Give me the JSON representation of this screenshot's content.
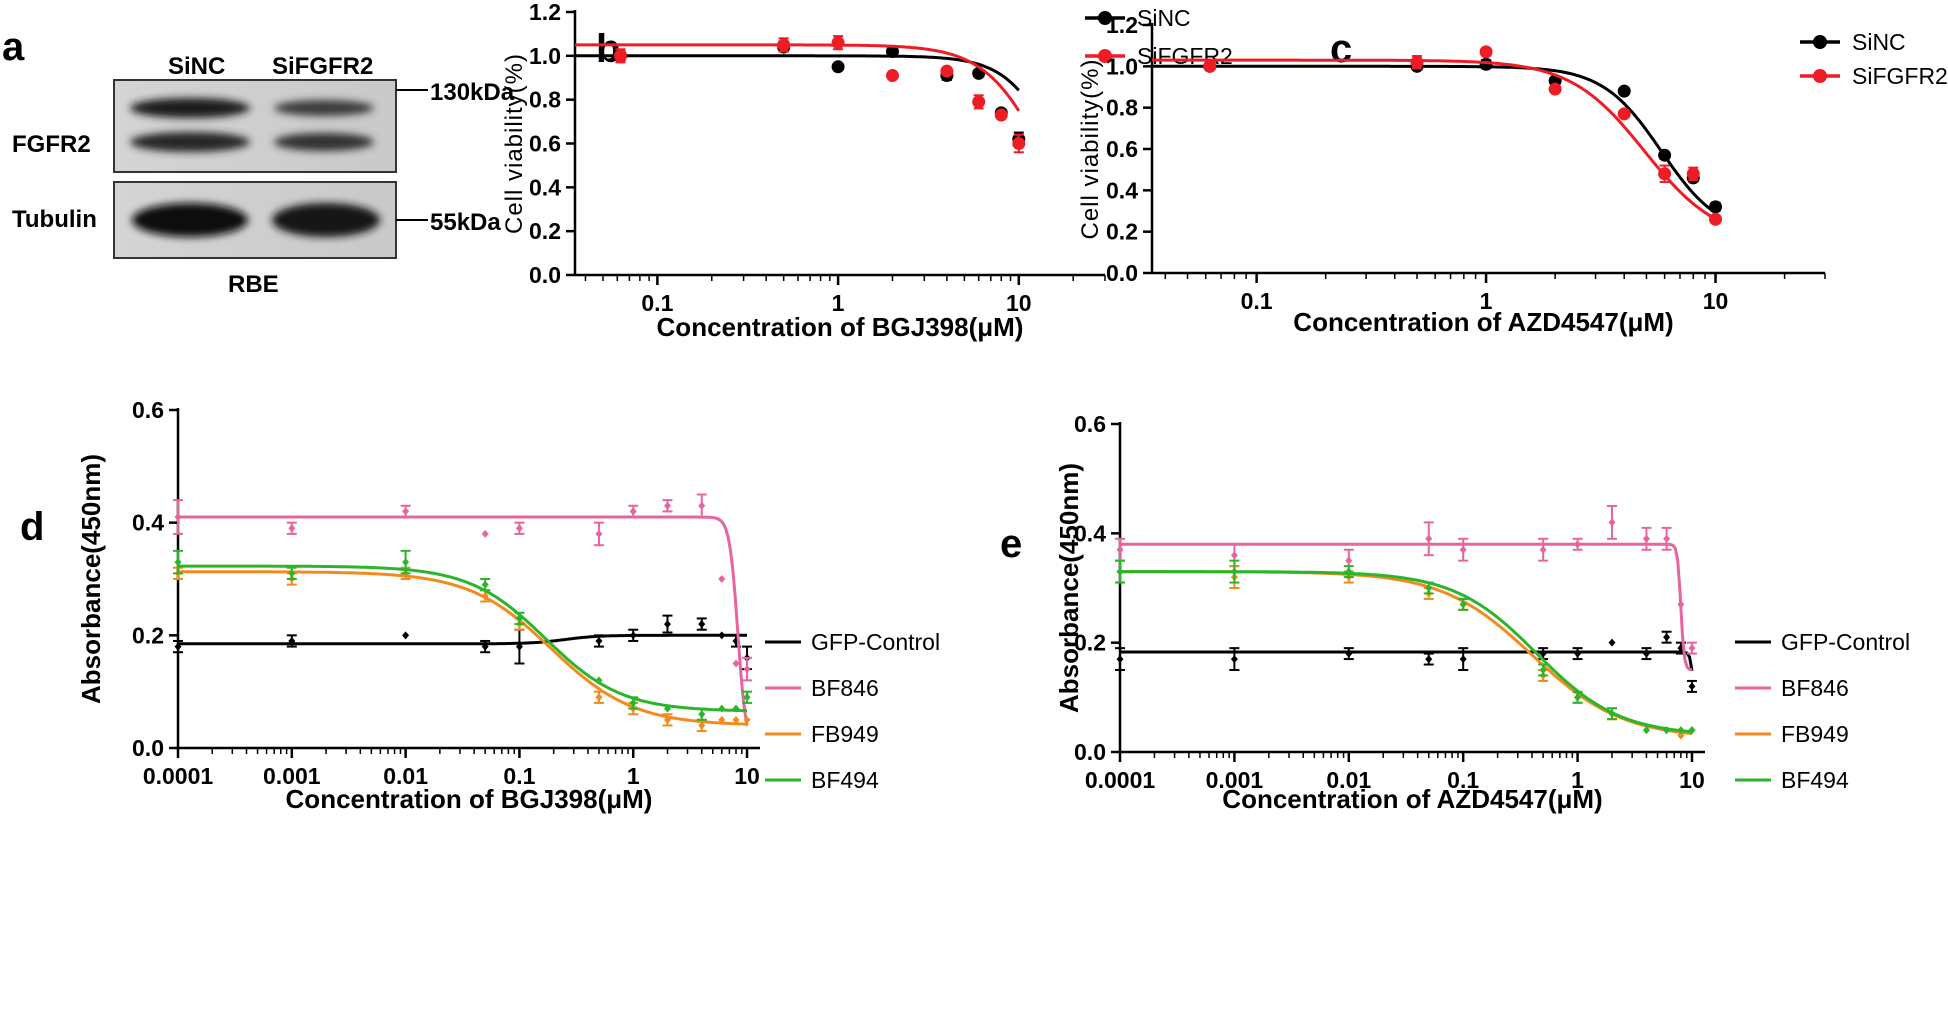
{
  "panel_letters": [
    "a",
    "b",
    "c",
    "d",
    "e"
  ],
  "blot": {
    "lanes": [
      "SiNC",
      "SiFGFR2"
    ],
    "rows": [
      "FGFR2",
      "Tubulin"
    ],
    "markers": [
      "130kDa",
      "55kDa"
    ],
    "cell_line": "RBE"
  },
  "chart_data": [
    {
      "panel": "b",
      "type": "scatter",
      "xscale": "log",
      "xlim": [
        0.035,
        30
      ],
      "ylim": [
        0,
        1.2
      ],
      "yticks": [
        "0.0",
        "0.2",
        "0.4",
        "0.6",
        "0.8",
        "1.0",
        "1.2"
      ],
      "xticks": [
        "0.1",
        "1",
        "10"
      ],
      "xlabel": "Concentration of BGJ398(μM)",
      "ylabel": "Cell viability(%)",
      "legend": "top-right",
      "series": [
        {
          "name": "SiNC",
          "color": "#000000",
          "marker": "circle",
          "x": [
            0.0625,
            0.5,
            1,
            2,
            4,
            6,
            8,
            10
          ],
          "y": [
            1.0,
            1.04,
            0.95,
            1.02,
            0.91,
            0.92,
            0.74,
            0.62
          ],
          "err": [
            0.02,
            0.02,
            0.0,
            0.0,
            0.02,
            0.0,
            0.0,
            0.03
          ],
          "fit": {
            "top": 1.0,
            "bottom": 0.0,
            "ec50": 17.5,
            "hill": 3.0
          }
        },
        {
          "name": "SiFGFR2",
          "color": "#ee1c24",
          "marker": "circle",
          "x": [
            0.0625,
            0.5,
            1,
            2,
            4,
            6,
            8,
            10
          ],
          "y": [
            1.0,
            1.05,
            1.06,
            0.91,
            0.93,
            0.79,
            0.73,
            0.6
          ],
          "err": [
            0.03,
            0.03,
            0.03,
            0.0,
            0.0,
            0.03,
            0.0,
            0.04
          ],
          "fit": {
            "top": 1.05,
            "bottom": 0.0,
            "ec50": 14.2,
            "hill": 2.6
          }
        }
      ]
    },
    {
      "panel": "c",
      "type": "scatter",
      "xscale": "log",
      "xlim": [
        0.035,
        30
      ],
      "ylim": [
        0,
        1.2
      ],
      "yticks": [
        "0.0",
        "0.2",
        "0.4",
        "0.6",
        "0.8",
        "1.0",
        "1.2"
      ],
      "xticks": [
        "0.1",
        "1",
        "10"
      ],
      "xlabel": "Concentration of AZD4547(μM)",
      "ylabel": "Cell viability(%)",
      "legend": "top-right",
      "series": [
        {
          "name": "SiNC",
          "color": "#000000",
          "marker": "circle",
          "x": [
            0.0625,
            0.5,
            1,
            2,
            4,
            6,
            8,
            10
          ],
          "y": [
            1.0,
            1.0,
            1.01,
            0.93,
            0.88,
            0.57,
            0.46,
            0.32
          ],
          "err": [
            0.0,
            0.0,
            0.02,
            0.0,
            0.0,
            0.0,
            0.0,
            0.02
          ],
          "fit": {
            "top": 1.0,
            "bottom": 0.18,
            "ec50": 5.8,
            "hill": 3.4
          }
        },
        {
          "name": "SiFGFR2",
          "color": "#ee1c24",
          "marker": "circle",
          "x": [
            0.0625,
            0.5,
            1,
            2,
            4,
            6,
            8,
            10
          ],
          "y": [
            1.0,
            1.02,
            1.07,
            0.89,
            0.77,
            0.48,
            0.48,
            0.26
          ],
          "err": [
            0.0,
            0.03,
            0.0,
            0.0,
            0.0,
            0.04,
            0.03,
            0.0
          ],
          "fit": {
            "top": 1.03,
            "bottom": 0.15,
            "ec50": 4.9,
            "hill": 2.7
          }
        }
      ]
    },
    {
      "panel": "d",
      "type": "scatter",
      "xscale": "log",
      "xlim": [
        0.0001,
        13
      ],
      "ylim": [
        0,
        0.6
      ],
      "yticks": [
        "0.0",
        "0.2",
        "0.4",
        "0.6"
      ],
      "xticks": [
        "0.0001",
        "0.001",
        "0.01",
        "0.1",
        "1",
        "10"
      ],
      "xlabel": "Concentration of BGJ398(μM)",
      "ylabel": "Absorbance(450nm)",
      "legend": "right",
      "series": [
        {
          "name": "GFP-Control",
          "color": "#000000",
          "marker": "diamond",
          "x": [
            0.0001,
            0.001,
            0.01,
            0.05,
            0.1,
            0.5,
            1,
            2,
            4,
            6,
            8,
            10
          ],
          "y": [
            0.18,
            0.19,
            0.2,
            0.18,
            0.18,
            0.19,
            0.2,
            0.22,
            0.22,
            0.2,
            0.19,
            0.16
          ],
          "err": [
            0.01,
            0.01,
            0.0,
            0.01,
            0.03,
            0.01,
            0.01,
            0.015,
            0.01,
            0.0,
            0.01,
            0.02
          ],
          "fit": {
            "top": 0.2,
            "bottom": 0.185,
            "ec50": 0.25,
            "hill": 3.0,
            "increasing": true
          }
        },
        {
          "name": "BF846",
          "color": "#e8649e",
          "marker": "diamond",
          "x": [
            0.0001,
            0.001,
            0.01,
            0.05,
            0.1,
            0.5,
            1,
            2,
            4,
            6,
            8,
            10
          ],
          "y": [
            0.41,
            0.39,
            0.42,
            0.38,
            0.39,
            0.38,
            0.42,
            0.43,
            0.43,
            0.3,
            0.15,
            0.14
          ],
          "err": [
            0.03,
            0.01,
            0.01,
            0.0,
            0.01,
            0.02,
            0.01,
            0.01,
            0.02,
            0.0,
            0.0,
            0.02
          ],
          "fit": {
            "top": 0.41,
            "bottom": 0.0,
            "ec50": 8.3,
            "hill": 12
          }
        },
        {
          "name": "FB949",
          "color": "#f28a1e",
          "marker": "diamond",
          "x": [
            0.0001,
            0.001,
            0.01,
            0.05,
            0.1,
            0.5,
            1,
            2,
            4,
            6,
            8,
            10
          ],
          "y": [
            0.31,
            0.3,
            0.31,
            0.27,
            0.22,
            0.09,
            0.07,
            0.05,
            0.04,
            0.05,
            0.05,
            0.05
          ],
          "err": [
            0.01,
            0.01,
            0.01,
            0.01,
            0.01,
            0.01,
            0.01,
            0.01,
            0.01,
            0.0,
            0.0,
            0.0
          ],
          "fit": {
            "top": 0.313,
            "bottom": 0.04,
            "ec50": 0.19,
            "hill": 1.2
          }
        },
        {
          "name": "BF494",
          "color": "#2ab52a",
          "marker": "diamond",
          "x": [
            0.0001,
            0.001,
            0.01,
            0.05,
            0.1,
            0.5,
            1,
            2,
            4,
            6,
            8,
            10
          ],
          "y": [
            0.33,
            0.31,
            0.33,
            0.29,
            0.23,
            0.12,
            0.08,
            0.07,
            0.06,
            0.07,
            0.07,
            0.09
          ],
          "err": [
            0.02,
            0.01,
            0.02,
            0.01,
            0.01,
            0.0,
            0.01,
            0.0,
            0.01,
            0.0,
            0.0,
            0.01
          ],
          "fit": {
            "top": 0.323,
            "bottom": 0.065,
            "ec50": 0.17,
            "hill": 1.3
          }
        }
      ]
    },
    {
      "panel": "e",
      "type": "scatter",
      "xscale": "log",
      "xlim": [
        0.0001,
        13
      ],
      "ylim": [
        0,
        0.6
      ],
      "yticks": [
        "0.0",
        "0.2",
        "0.4",
        "0.6"
      ],
      "xticks": [
        "0.0001",
        "0.001",
        "0.01",
        "0.1",
        "1",
        "10"
      ],
      "xlabel": "Concentration of AZD4547(μM)",
      "ylabel": "Absorbance(450nm)",
      "legend": "right",
      "series": [
        {
          "name": "GFP-Control",
          "color": "#000000",
          "marker": "diamond",
          "x": [
            0.0001,
            0.001,
            0.01,
            0.05,
            0.1,
            0.5,
            1,
            2,
            4,
            6,
            8,
            10
          ],
          "y": [
            0.17,
            0.17,
            0.18,
            0.17,
            0.17,
            0.18,
            0.18,
            0.2,
            0.18,
            0.21,
            0.19,
            0.12
          ],
          "err": [
            0.02,
            0.02,
            0.01,
            0.01,
            0.02,
            0.01,
            0.01,
            0.0,
            0.01,
            0.01,
            0.01,
            0.01
          ],
          "fit": {
            "top": 0.183,
            "bottom": 0.0,
            "ec50": 10.5,
            "hill": 30
          }
        },
        {
          "name": "BF846",
          "color": "#e8649e",
          "marker": "diamond",
          "x": [
            0.0001,
            0.001,
            0.01,
            0.05,
            0.1,
            0.5,
            1,
            2,
            4,
            6,
            8,
            10
          ],
          "y": [
            0.37,
            0.36,
            0.35,
            0.39,
            0.37,
            0.37,
            0.38,
            0.42,
            0.39,
            0.39,
            0.27,
            0.19
          ],
          "err": [
            0.02,
            0.02,
            0.02,
            0.03,
            0.02,
            0.02,
            0.01,
            0.03,
            0.02,
            0.02,
            0.0,
            0.01
          ],
          "fit": {
            "top": 0.38,
            "bottom": 0.15,
            "ec50": 8.0,
            "hill": 30
          }
        },
        {
          "name": "FB949",
          "color": "#f28a1e",
          "marker": "diamond",
          "x": [
            0.0001,
            0.001,
            0.01,
            0.05,
            0.1,
            0.5,
            1,
            2,
            4,
            6,
            8,
            10
          ],
          "y": [
            0.33,
            0.32,
            0.32,
            0.29,
            0.27,
            0.14,
            0.1,
            0.07,
            0.04,
            0.04,
            0.03,
            0.04
          ],
          "err": [
            0.02,
            0.02,
            0.01,
            0.01,
            0.01,
            0.01,
            0.01,
            0.01,
            0.0,
            0.0,
            0.0,
            0.0
          ],
          "fit": {
            "top": 0.33,
            "bottom": 0.025,
            "ec50": 0.4,
            "hill": 1.1
          }
        },
        {
          "name": "BF494",
          "color": "#2ab52a",
          "marker": "diamond",
          "x": [
            0.0001,
            0.001,
            0.01,
            0.05,
            0.1,
            0.5,
            1,
            2,
            4,
            6,
            8,
            10
          ],
          "y": [
            0.33,
            0.33,
            0.33,
            0.3,
            0.27,
            0.15,
            0.1,
            0.07,
            0.04,
            0.04,
            0.04,
            0.04
          ],
          "err": [
            0.02,
            0.02,
            0.01,
            0.01,
            0.01,
            0.01,
            0.01,
            0.01,
            0.0,
            0.0,
            0.0,
            0.0
          ],
          "fit": {
            "top": 0.33,
            "bottom": 0.03,
            "ec50": 0.44,
            "hill": 1.2
          }
        }
      ]
    }
  ]
}
